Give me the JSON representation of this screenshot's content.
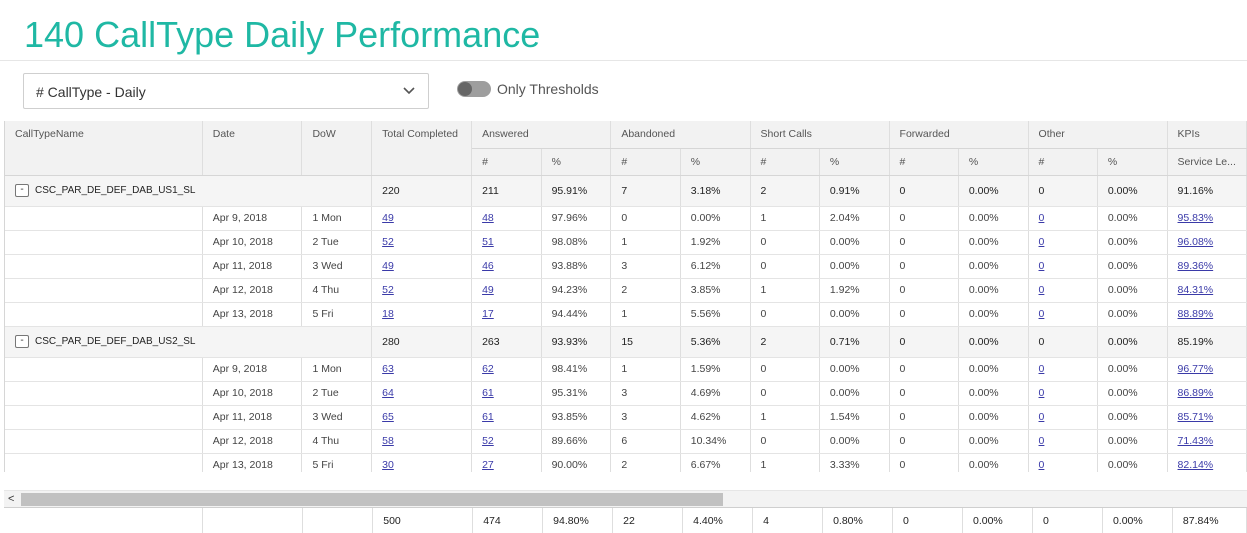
{
  "page": {
    "title": "140 CallType Daily Performance"
  },
  "report_select": {
    "value": "# CallType - Daily"
  },
  "threshold_toggle": {
    "label": "Only Thresholds",
    "on": false
  },
  "table": {
    "headers": {
      "calltype_name": "CallTypeName",
      "date": "Date",
      "dow": "DoW",
      "total_completed": "Total Completed",
      "answered": "Answered",
      "abandoned": "Abandoned",
      "short_calls": "Short Calls",
      "forwarded": "Forwarded",
      "other": "Other",
      "kpis": "KPIs",
      "count": "#",
      "percent": "%",
      "service_level": "Service Le..."
    },
    "groups": [
      {
        "name": "CSC_PAR_DE_DEF_DAB_US1_SL",
        "expander": "-",
        "summary": [
          "220",
          "211",
          "95.91%",
          "7",
          "3.18%",
          "2",
          "0.91%",
          "0",
          "0.00%",
          "0",
          "0.00%",
          "91.16%"
        ],
        "rows": [
          {
            "date": "Apr 9, 2018",
            "dow": "1 Mon",
            "vals": [
              "49",
              "48",
              "97.96%",
              "0",
              "0.00%",
              "1",
              "2.04%",
              "0",
              "0.00%",
              "0",
              "0.00%",
              "95.83%"
            ]
          },
          {
            "date": "Apr 10, 2018",
            "dow": "2 Tue",
            "vals": [
              "52",
              "51",
              "98.08%",
              "1",
              "1.92%",
              "0",
              "0.00%",
              "0",
              "0.00%",
              "0",
              "0.00%",
              "96.08%"
            ]
          },
          {
            "date": "Apr 11, 2018",
            "dow": "3 Wed",
            "vals": [
              "49",
              "46",
              "93.88%",
              "3",
              "6.12%",
              "0",
              "0.00%",
              "0",
              "0.00%",
              "0",
              "0.00%",
              "89.36%"
            ]
          },
          {
            "date": "Apr 12, 2018",
            "dow": "4 Thu",
            "vals": [
              "52",
              "49",
              "94.23%",
              "2",
              "3.85%",
              "1",
              "1.92%",
              "0",
              "0.00%",
              "0",
              "0.00%",
              "84.31%"
            ]
          },
          {
            "date": "Apr 13, 2018",
            "dow": "5 Fri",
            "vals": [
              "18",
              "17",
              "94.44%",
              "1",
              "5.56%",
              "0",
              "0.00%",
              "0",
              "0.00%",
              "0",
              "0.00%",
              "88.89%"
            ]
          }
        ]
      },
      {
        "name": "CSC_PAR_DE_DEF_DAB_US2_SL",
        "expander": "-",
        "summary": [
          "280",
          "263",
          "93.93%",
          "15",
          "5.36%",
          "2",
          "0.71%",
          "0",
          "0.00%",
          "0",
          "0.00%",
          "85.19%"
        ],
        "rows": [
          {
            "date": "Apr 9, 2018",
            "dow": "1 Mon",
            "vals": [
              "63",
              "62",
              "98.41%",
              "1",
              "1.59%",
              "0",
              "0.00%",
              "0",
              "0.00%",
              "0",
              "0.00%",
              "96.77%"
            ]
          },
          {
            "date": "Apr 10, 2018",
            "dow": "2 Tue",
            "vals": [
              "64",
              "61",
              "95.31%",
              "3",
              "4.69%",
              "0",
              "0.00%",
              "0",
              "0.00%",
              "0",
              "0.00%",
              "86.89%"
            ]
          },
          {
            "date": "Apr 11, 2018",
            "dow": "3 Wed",
            "vals": [
              "65",
              "61",
              "93.85%",
              "3",
              "4.62%",
              "1",
              "1.54%",
              "0",
              "0.00%",
              "0",
              "0.00%",
              "85.71%"
            ]
          },
          {
            "date": "Apr 12, 2018",
            "dow": "4 Thu",
            "vals": [
              "58",
              "52",
              "89.66%",
              "6",
              "10.34%",
              "0",
              "0.00%",
              "0",
              "0.00%",
              "0",
              "0.00%",
              "71.43%"
            ]
          },
          {
            "date": "Apr 13, 2018",
            "dow": "5 Fri",
            "vals": [
              "30",
              "27",
              "90.00%",
              "2",
              "6.67%",
              "1",
              "3.33%",
              "0",
              "0.00%",
              "0",
              "0.00%",
              "82.14%"
            ]
          }
        ]
      }
    ],
    "totals": [
      "500",
      "474",
      "94.80%",
      "22",
      "4.40%",
      "4",
      "0.80%",
      "0",
      "0.00%",
      "0",
      "0.00%",
      "87.84%"
    ]
  },
  "scrollbar": {
    "left_arrow": "<"
  },
  "colors": {
    "title": "#1fb8a4",
    "link": "#3a3aa8",
    "header_bg": "#f2f2f2",
    "group_bg": "#f5f5f5"
  }
}
